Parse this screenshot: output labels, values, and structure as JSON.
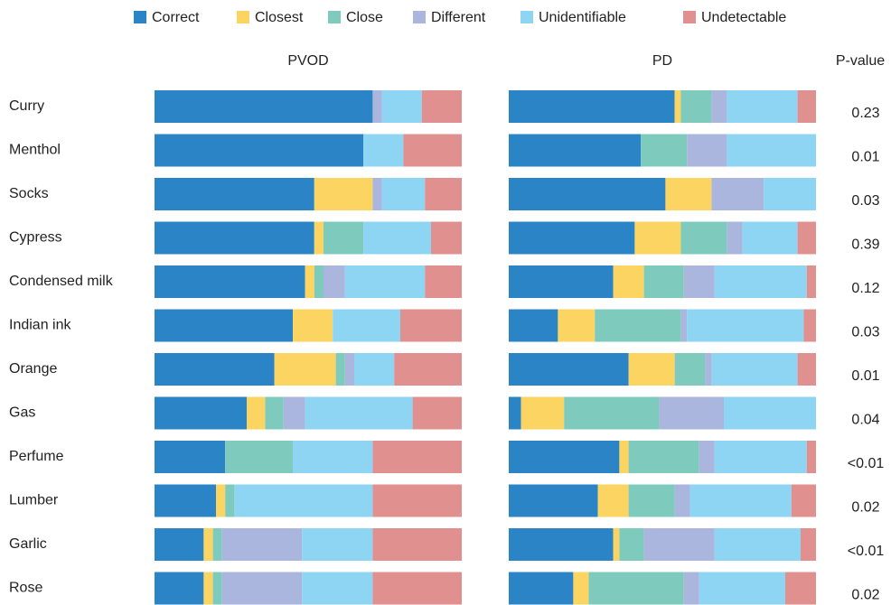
{
  "chart_data": {
    "type": "bar",
    "orientation": "horizontal",
    "stacked": true,
    "xlim": [
      0,
      100
    ],
    "categories": [
      "Curry",
      "Menthol",
      "Socks",
      "Cypress",
      "Condensed milk",
      "Indian ink",
      "Orange",
      "Gas",
      "Perfume",
      "Lumber",
      "Garlic",
      "Rose"
    ],
    "series": [
      {
        "name": "Correct",
        "color": "#2a84c6"
      },
      {
        "name": "Closest",
        "color": "#fcd462"
      },
      {
        "name": "Close",
        "color": "#7ecbbd"
      },
      {
        "name": "Different",
        "color": "#aab6dd"
      },
      {
        "name": "Unidentifiable",
        "color": "#8dd5f3"
      },
      {
        "name": "Undetectable",
        "color": "#e0908f"
      }
    ],
    "panels": [
      {
        "title": "PVOD",
        "values": [
          [
            71,
            0,
            0,
            3,
            13,
            13
          ],
          [
            68,
            0,
            0,
            0,
            13,
            19
          ],
          [
            52,
            19,
            0,
            3,
            14,
            12
          ],
          [
            52,
            3,
            13,
            0,
            22,
            10
          ],
          [
            49,
            3,
            3,
            7,
            26,
            12
          ],
          [
            45,
            13,
            0,
            0,
            22,
            20
          ],
          [
            39,
            20,
            3,
            3,
            13,
            22
          ],
          [
            30,
            6,
            6,
            7,
            35,
            16
          ],
          [
            23,
            0,
            22,
            0,
            26,
            29
          ],
          [
            20,
            3,
            3,
            0,
            45,
            29
          ],
          [
            16,
            3,
            3,
            26,
            23,
            29
          ],
          [
            16,
            3,
            3,
            26,
            23,
            29
          ]
        ]
      },
      {
        "title": "PD",
        "values": [
          [
            54,
            2,
            10,
            5,
            23,
            6
          ],
          [
            43,
            0,
            15,
            13,
            29,
            0
          ],
          [
            51,
            15,
            0,
            17,
            17,
            0
          ],
          [
            41,
            15,
            15,
            5,
            18,
            6
          ],
          [
            34,
            10,
            13,
            10,
            30,
            3
          ],
          [
            16,
            12,
            28,
            2,
            38,
            4
          ],
          [
            39,
            15,
            10,
            2,
            28,
            6
          ],
          [
            4,
            14,
            31,
            21,
            30,
            0
          ],
          [
            36,
            3,
            23,
            5,
            30,
            3
          ],
          [
            29,
            10,
            15,
            5,
            33,
            8
          ],
          [
            34,
            2,
            8,
            23,
            28,
            5
          ],
          [
            21,
            5,
            31,
            5,
            28,
            10
          ]
        ]
      }
    ],
    "p_value_title": "P-value",
    "p_values": [
      "0.23",
      "0.01",
      "0.03",
      "0.39",
      "0.12",
      "0.03",
      "0.01",
      "0.04",
      "<0.01",
      "0.02",
      "<0.01",
      "0.02"
    ]
  }
}
